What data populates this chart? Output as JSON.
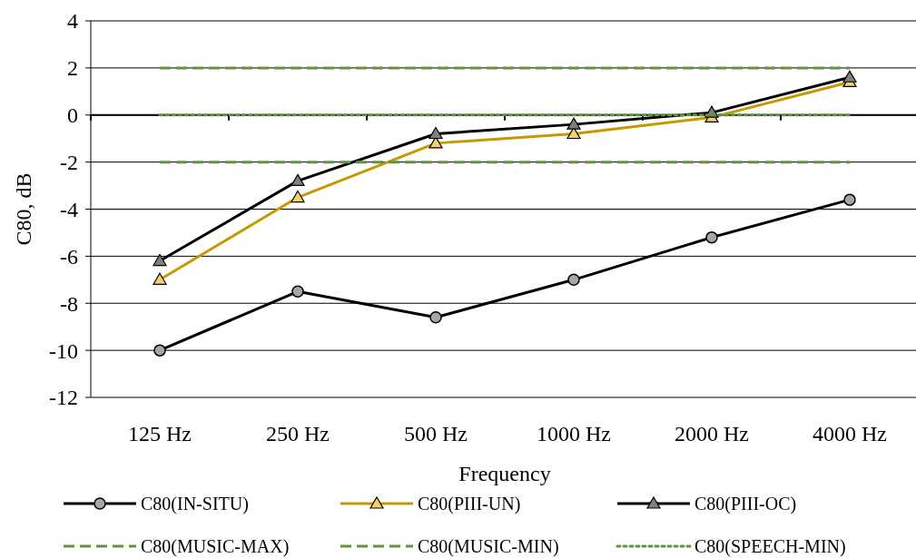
{
  "chart_data": {
    "type": "line",
    "xlabel": "Frequency",
    "ylabel": "C80, dB",
    "categories": [
      "125 Hz",
      "250 Hz",
      "500 Hz",
      "1000 Hz",
      "2000 Hz",
      "4000 Hz"
    ],
    "ylim": [
      -12,
      4
    ],
    "yticks": [
      -12,
      -10,
      -8,
      -6,
      -4,
      -2,
      0,
      2,
      4
    ],
    "grid": "y",
    "legend": "bottom",
    "series": [
      {
        "name": "C80(IN-SITU)",
        "color": "#000000",
        "marker": "circle",
        "line_style": "solid",
        "values": [
          -10,
          -7.5,
          -8.6,
          -7,
          -5.2,
          -3.6
        ]
      },
      {
        "name": "C80(PIII-UN)",
        "color": "#c89800",
        "marker": "triangle",
        "line_style": "solid",
        "values": [
          -7,
          -3.5,
          -1.2,
          -0.8,
          -0.1,
          1.4
        ]
      },
      {
        "name": "C80(PIII-OC)",
        "color": "#000000",
        "marker": "triangle",
        "line_style": "solid",
        "values": [
          -6.2,
          -2.8,
          -0.8,
          -0.4,
          0.1,
          1.6
        ]
      },
      {
        "name": "C80(MUSIC-MAX)",
        "color": "#5e9441",
        "marker": "none",
        "line_style": "dashed",
        "values": [
          2,
          2,
          2,
          2,
          2,
          2
        ]
      },
      {
        "name": "C80(MUSIC-MIN)",
        "color": "#5e9441",
        "marker": "none",
        "line_style": "dashed",
        "values": [
          -2,
          -2,
          -2,
          -2,
          -2,
          -2
        ]
      },
      {
        "name": "C80(SPEECH-MIN)",
        "color": "#5e9441",
        "marker": "none",
        "line_style": "dotted",
        "values": [
          0,
          0,
          0,
          0,
          0,
          0
        ]
      }
    ]
  }
}
